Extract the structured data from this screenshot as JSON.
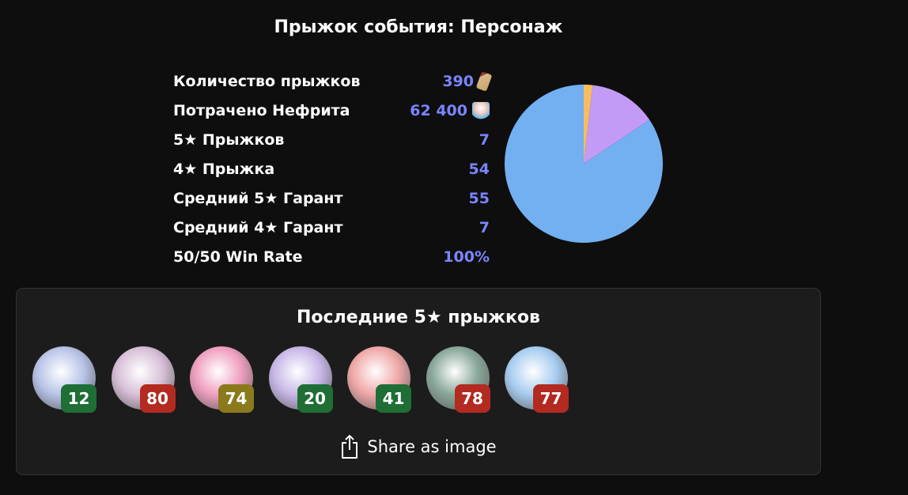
{
  "title": "Прыжок события: Персонаж",
  "stats": [
    {
      "label": "Количество прыжков",
      "value": "390",
      "icon": "pass-icon"
    },
    {
      "label": "Потрачено Нефрита",
      "value": "62 400",
      "icon": "jade-icon"
    },
    {
      "label": "5★ Прыжков",
      "value": "7"
    },
    {
      "label": "4★ Прыжка",
      "value": "54"
    },
    {
      "label": "Средний 5★ Гарант",
      "value": "55"
    },
    {
      "label": "Средний 4★ Гарант",
      "value": "7"
    },
    {
      "label": "50/50 Win Rate",
      "value": "100%"
    }
  ],
  "chart_data": {
    "type": "pie",
    "values": [
      7,
      54,
      329
    ],
    "colors": [
      "#f6bd60",
      "#c39bf7",
      "#72b0f2"
    ]
  },
  "recent": {
    "title": "Последние 5★ прыжков",
    "items": [
      {
        "pity": "12",
        "status": "win",
        "color": "#1f6e35",
        "hue": "#b8c4e8"
      },
      {
        "pity": "80",
        "status": "lose",
        "color": "#b32a20",
        "hue": "#d8c0d8"
      },
      {
        "pity": "74",
        "status": "mid",
        "color": "#8a7a1c",
        "hue": "#f0a0c0"
      },
      {
        "pity": "20",
        "status": "win",
        "color": "#1f6e35",
        "hue": "#c8b8e8"
      },
      {
        "pity": "41",
        "status": "win",
        "color": "#1f6e35",
        "hue": "#f0a8a8"
      },
      {
        "pity": "78",
        "status": "lose",
        "color": "#b32a20",
        "hue": "#8aa89a"
      },
      {
        "pity": "77",
        "status": "lose",
        "color": "#b32a20",
        "hue": "#a8cdf0"
      }
    ],
    "share_label": "Share as image"
  }
}
